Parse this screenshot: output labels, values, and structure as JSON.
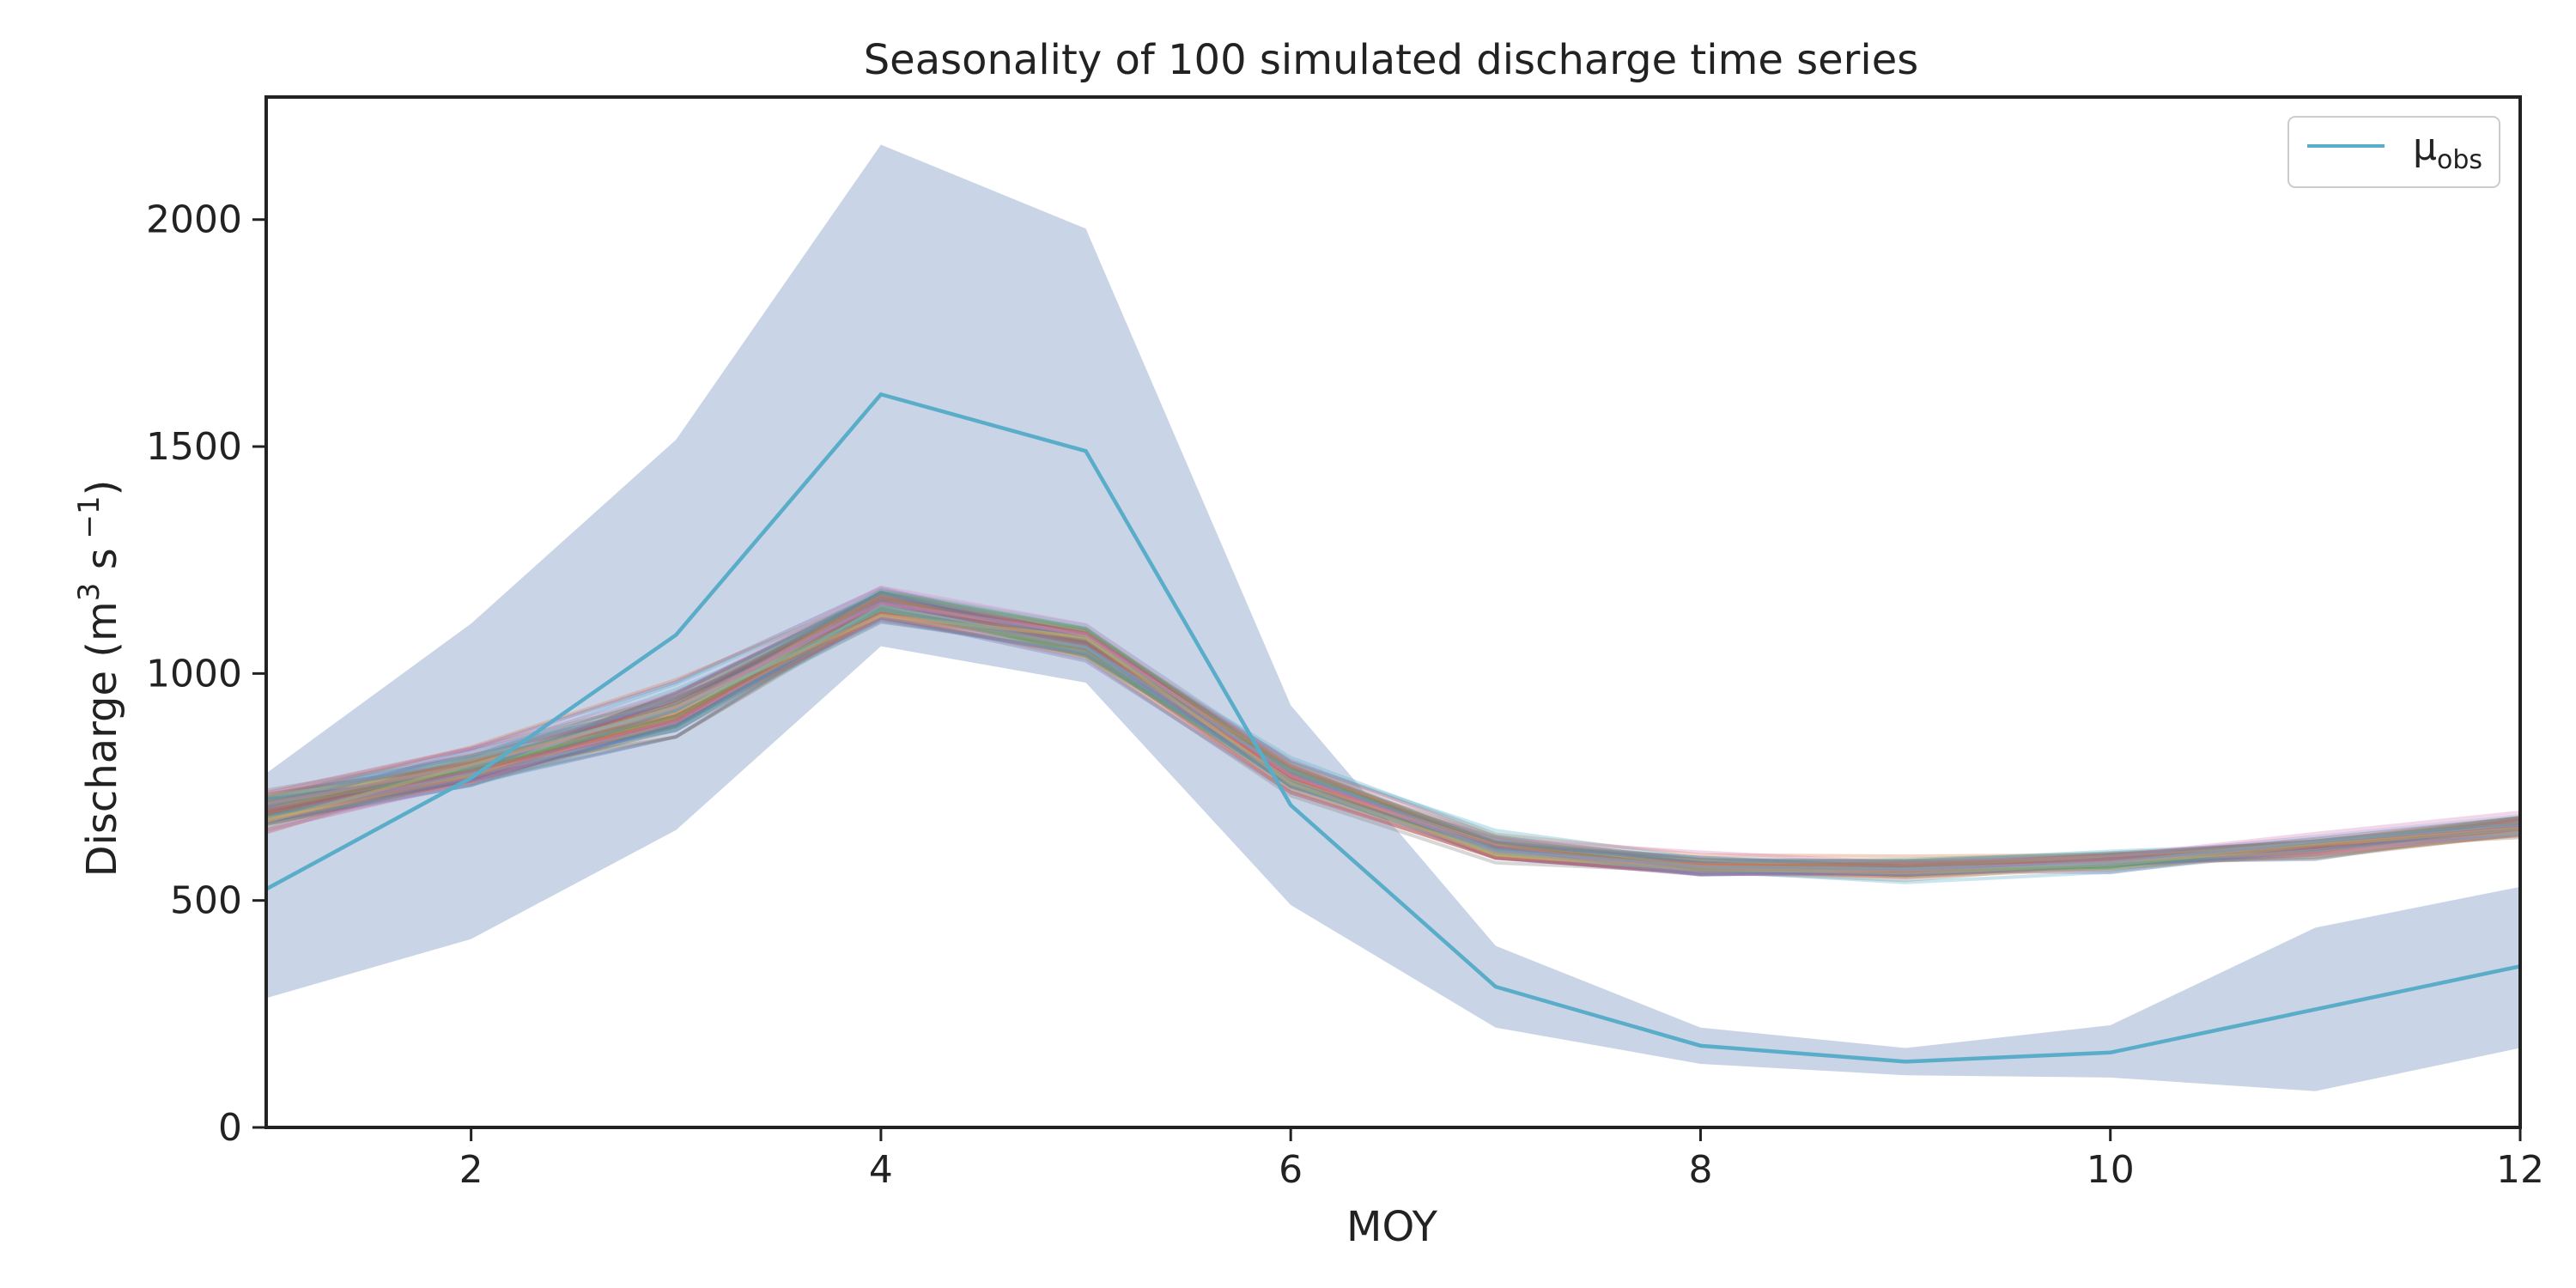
{
  "chart_data": {
    "type": "line",
    "title": "Seasonality of 100 simulated discharge time series",
    "xlabel": "MOY",
    "ylabel": "Discharge (m",
    "ylabel_sup1": "3",
    "ylabel_mid": " s",
    "ylabel_sup2": " −1",
    "ylabel_end": ")",
    "xlim": [
      1,
      12
    ],
    "ylim": [
      0,
      2270
    ],
    "x_ticks": [
      2,
      4,
      6,
      8,
      10,
      12
    ],
    "y_ticks": [
      0,
      500,
      1000,
      1500,
      2000
    ],
    "x": [
      1,
      2,
      3,
      4,
      5,
      6,
      7,
      8,
      9,
      10,
      11,
      12
    ],
    "legend": {
      "placement": "top-right",
      "label": "μ",
      "label_sub": "obs"
    },
    "observed_mean": {
      "name": "μobs",
      "color": "#5aadc8",
      "values": [
        525,
        770,
        1085,
        1615,
        1490,
        710,
        310,
        180,
        145,
        165,
        260,
        355
      ]
    },
    "observed_band": {
      "color": "#b2c2db",
      "upper": [
        780,
        1110,
        1515,
        2165,
        1980,
        930,
        400,
        220,
        175,
        225,
        440,
        530
      ],
      "lower": [
        285,
        415,
        655,
        1060,
        980,
        490,
        220,
        140,
        115,
        110,
        80,
        175
      ]
    },
    "simulated_ensemble": {
      "count": 100,
      "mean": [
        705,
        790,
        920,
        1150,
        1070,
        775,
        620,
        575,
        570,
        585,
        620,
        665
      ],
      "spread": [
        40,
        35,
        45,
        35,
        35,
        30,
        25,
        20,
        20,
        20,
        20,
        20
      ],
      "palette": [
        "#4c72b0",
        "#dd8452",
        "#55a868",
        "#c44e52",
        "#8172b3",
        "#937860",
        "#da8bc3",
        "#8c8c8c",
        "#ccb974",
        "#64b5cd"
      ]
    }
  }
}
